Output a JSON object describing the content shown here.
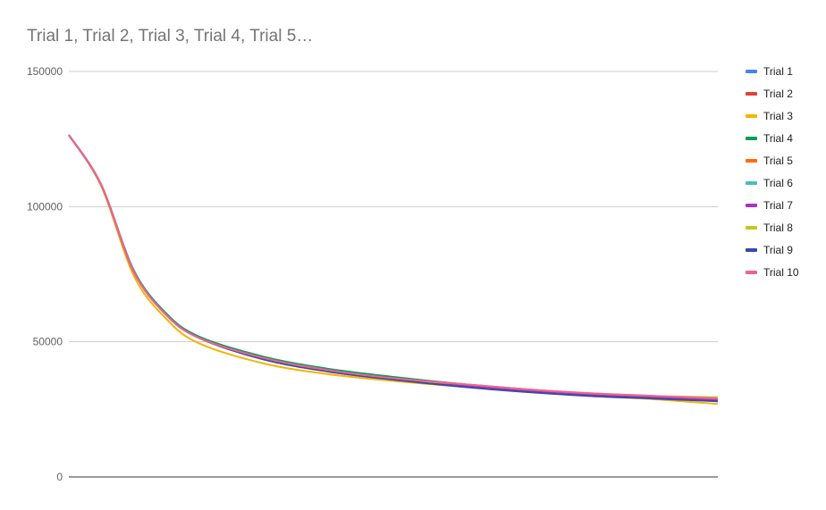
{
  "chart_data": {
    "type": "line",
    "title": "Trial 1, Trial 2, Trial 3, Trial 4, Trial 5…",
    "xlabel": "",
    "ylabel": "",
    "ylim": [
      0,
      150000
    ],
    "yticks": [
      0,
      50000,
      100000,
      150000
    ],
    "ytick_labels": [
      "0",
      "50000",
      "100000",
      "150000"
    ],
    "x": [
      0,
      0.05,
      0.1,
      0.15,
      0.2,
      0.3,
      0.4,
      0.5,
      0.6,
      0.7,
      0.8,
      0.9,
      1.0
    ],
    "grid": true,
    "legend_position": "right",
    "series": [
      {
        "name": "Trial 1",
        "color": "#4285f4",
        "values": [
          126500,
          108000,
          76000,
          60000,
          51500,
          43500,
          39000,
          36000,
          34000,
          32000,
          30500,
          29500,
          28500
        ]
      },
      {
        "name": "Trial 2",
        "color": "#db4437",
        "values": [
          126500,
          108000,
          76000,
          60000,
          51500,
          43500,
          39000,
          36000,
          34000,
          32000,
          30500,
          29500,
          28500
        ]
      },
      {
        "name": "Trial 3",
        "color": "#f4b400",
        "values": [
          126500,
          107500,
          74500,
          58500,
          49500,
          42000,
          38000,
          35500,
          33500,
          32000,
          30000,
          28800,
          27000
        ]
      },
      {
        "name": "Trial 4",
        "color": "#0f9d58",
        "values": [
          126500,
          108000,
          76500,
          60500,
          52000,
          44500,
          40000,
          37000,
          34500,
          32500,
          30500,
          29500,
          28500
        ]
      },
      {
        "name": "Trial 5",
        "color": "#ff6d00",
        "values": [
          126500,
          108000,
          76000,
          60000,
          51500,
          43500,
          39000,
          36000,
          34000,
          32000,
          30500,
          29500,
          28500
        ]
      },
      {
        "name": "Trial 6",
        "color": "#46bdc6",
        "values": [
          126500,
          108000,
          76000,
          60000,
          51500,
          43500,
          39000,
          36000,
          34000,
          32000,
          30500,
          29500,
          28500
        ]
      },
      {
        "name": "Trial 7",
        "color": "#ab30c4",
        "values": [
          126500,
          108000,
          76000,
          60000,
          51500,
          43500,
          39500,
          36000,
          34000,
          32000,
          30500,
          29500,
          28500
        ]
      },
      {
        "name": "Trial 8",
        "color": "#c2c61f",
        "values": [
          126500,
          108000,
          76000,
          60000,
          51500,
          43500,
          39000,
          36000,
          34500,
          32500,
          31000,
          30000,
          29500
        ]
      },
      {
        "name": "Trial 9",
        "color": "#3949ab",
        "values": [
          126500,
          108000,
          76000,
          60000,
          51500,
          43500,
          39000,
          36000,
          33500,
          31500,
          30000,
          29000,
          28000
        ]
      },
      {
        "name": "Trial 10",
        "color": "#f06292",
        "values": [
          126500,
          108000,
          76000,
          60000,
          51500,
          44000,
          39500,
          36500,
          34500,
          32500,
          31000,
          30000,
          29000
        ]
      }
    ]
  }
}
